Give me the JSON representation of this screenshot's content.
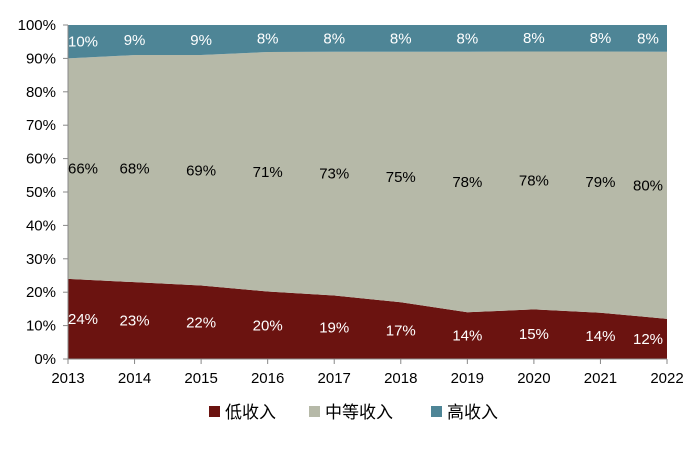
{
  "chart_data": {
    "type": "area",
    "stacked": true,
    "normalized": true,
    "title": "",
    "xlabel": "",
    "ylabel": "",
    "x": [
      "2013",
      "2014",
      "2015",
      "2016",
      "2017",
      "2018",
      "2019",
      "2020",
      "2021",
      "2022"
    ],
    "ylim": [
      0,
      100
    ],
    "yticks": [
      "0%",
      "10%",
      "20%",
      "30%",
      "40%",
      "50%",
      "60%",
      "70%",
      "80%",
      "90%",
      "100%"
    ],
    "grid": false,
    "legend_position": "bottom",
    "series": [
      {
        "name": "低收入",
        "color": "#6b1310",
        "values": [
          24,
          23,
          22,
          20,
          19,
          17,
          14,
          15,
          14,
          12
        ],
        "labels": [
          "24%",
          "23%",
          "22%",
          "20%",
          "19%",
          "17%",
          "14%",
          "15%",
          "14%",
          "12%"
        ],
        "label_color": "#ffffff"
      },
      {
        "name": "中等收入",
        "color": "#b6b9a8",
        "values": [
          66,
          68,
          69,
          71,
          73,
          75,
          78,
          78,
          79,
          80
        ],
        "labels": [
          "66%",
          "68%",
          "69%",
          "71%",
          "73%",
          "75%",
          "78%",
          "78%",
          "79%",
          "80%"
        ],
        "label_color": "#000000"
      },
      {
        "name": "高收入",
        "color": "#4e8596",
        "values": [
          10,
          9,
          9,
          8,
          8,
          8,
          8,
          8,
          8,
          8
        ],
        "labels": [
          "10%",
          "9%",
          "9%",
          "8%",
          "8%",
          "8%",
          "8%",
          "8%",
          "8%",
          "8%"
        ],
        "label_color": "#ffffff"
      }
    ]
  }
}
